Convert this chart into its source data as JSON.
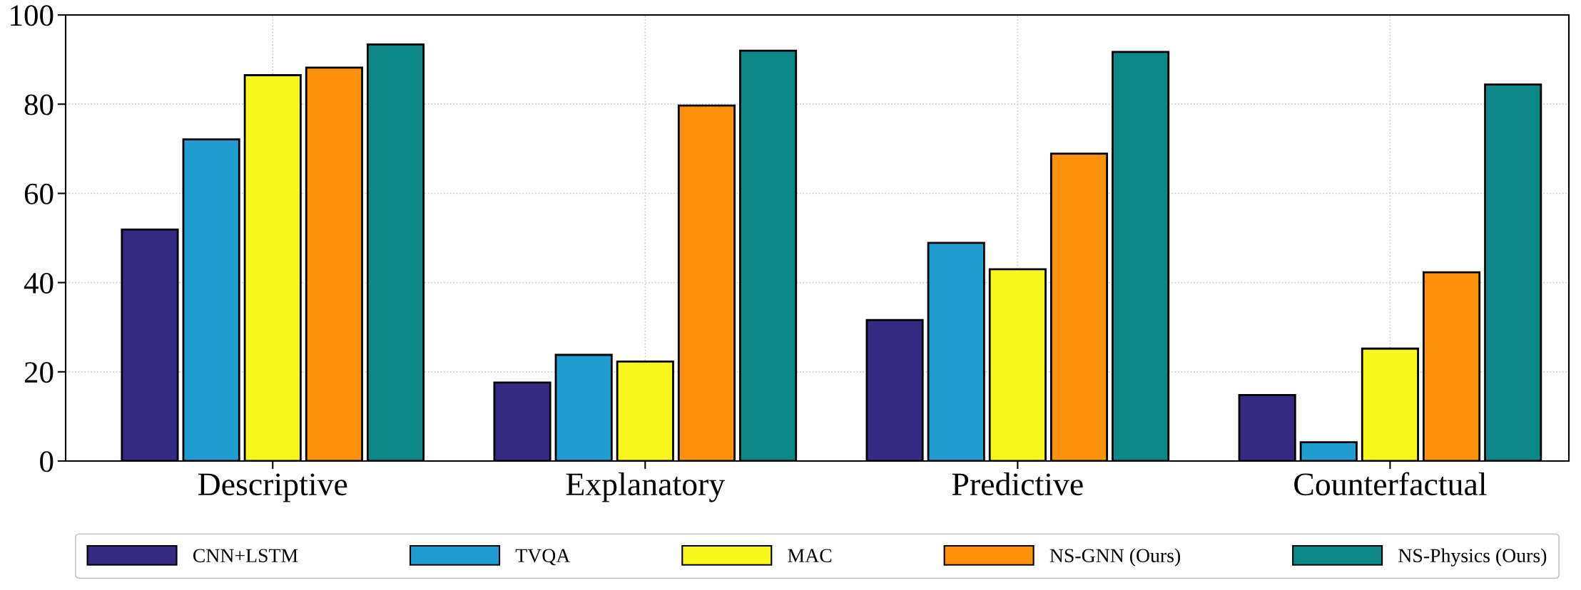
{
  "chart_data": {
    "type": "bar",
    "categories": [
      "Descriptive",
      "Explanatory",
      "Predictive",
      "Counterfactual"
    ],
    "series": [
      {
        "name": "CNN+LSTM",
        "color": "#342a82",
        "values": [
          51.9,
          17.6,
          31.6,
          14.8
        ]
      },
      {
        "name": "TVQA",
        "color": "#219cd1",
        "values": [
          72.1,
          23.8,
          48.9,
          4.2
        ]
      },
      {
        "name": "MAC",
        "color": "#f7f71c",
        "values": [
          86.5,
          22.3,
          43.0,
          25.2
        ]
      },
      {
        "name": "NS-GNN (Ours)",
        "color": "#fc910b",
        "values": [
          88.2,
          79.7,
          68.9,
          42.3
        ]
      },
      {
        "name": "NS-Physics (Ours)",
        "color": "#0d8788",
        "values": [
          93.4,
          92.0,
          91.7,
          84.4
        ]
      }
    ],
    "ylim": [
      0,
      100
    ],
    "yticks": [
      0,
      20,
      40,
      60,
      80,
      100
    ],
    "grid": true,
    "legend": "bottom"
  }
}
